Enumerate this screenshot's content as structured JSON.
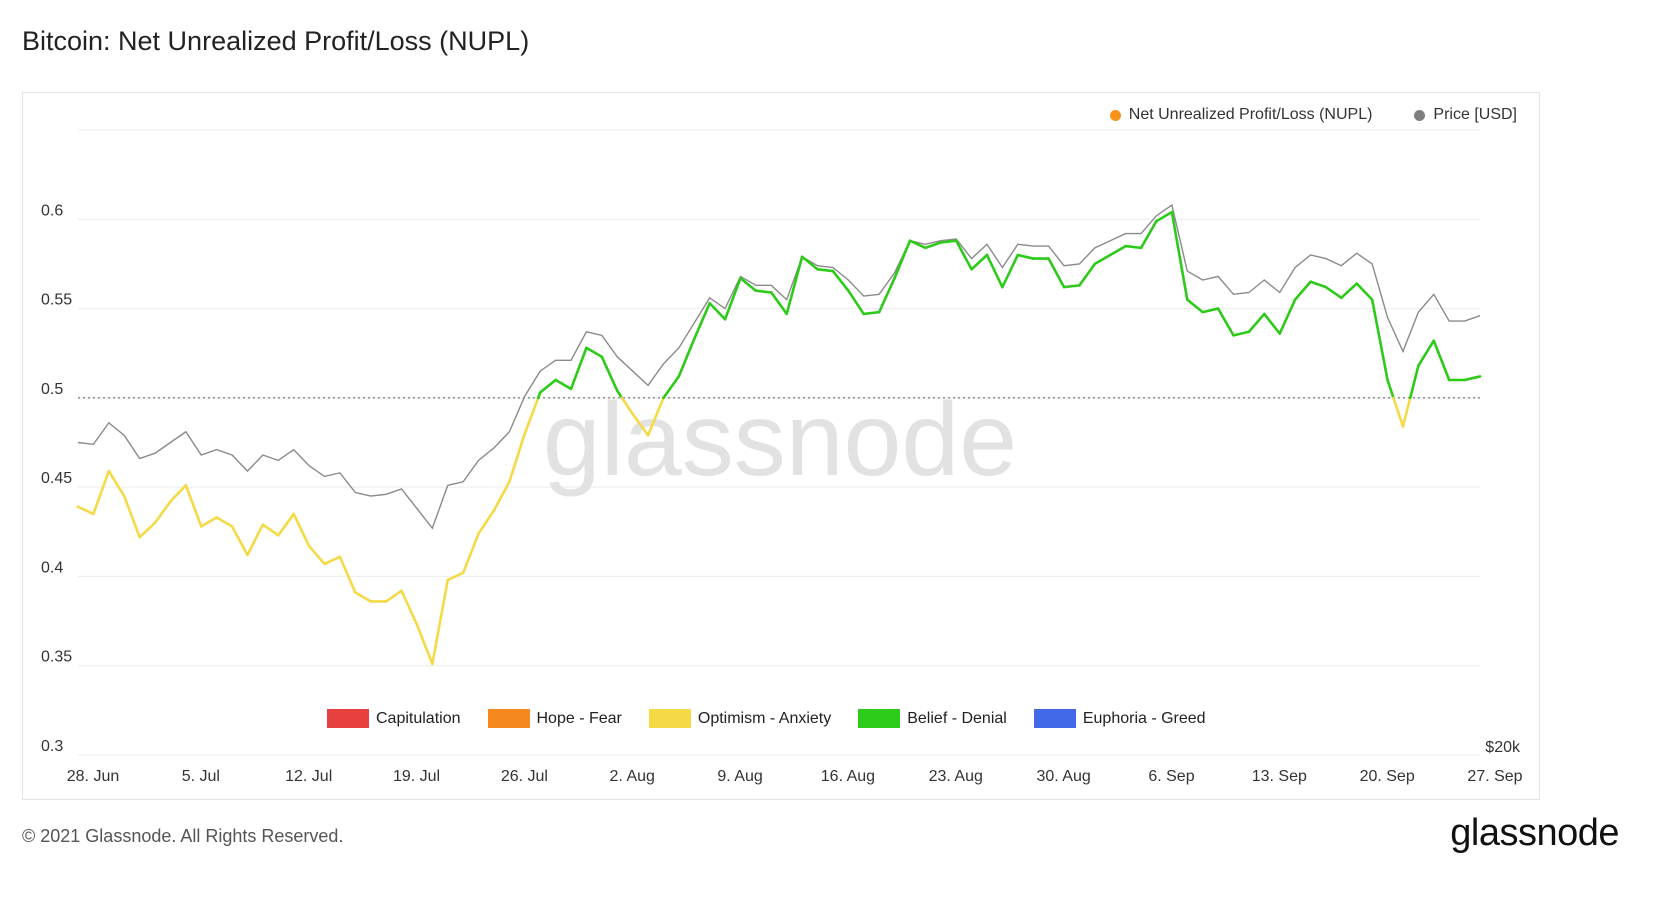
{
  "title": "Bitcoin: Net Unrealized Profit/Loss (NUPL)",
  "legend_top": [
    {
      "label": "Net Unrealized Profit/Loss (NUPL)",
      "color": "#f7931a"
    },
    {
      "label": "Price [USD]",
      "color": "#808080"
    }
  ],
  "zones": [
    {
      "label": "Capitulation",
      "color": "#e8403f"
    },
    {
      "label": "Hope - Fear",
      "color": "#f5891d"
    },
    {
      "label": "Optimism - Anxiety",
      "color": "#f5d947"
    },
    {
      "label": "Belief - Denial",
      "color": "#2dca1a"
    },
    {
      "label": "Euphoria - Greed",
      "color": "#4169e8"
    }
  ],
  "watermark": "glassnode",
  "footer": {
    "copyright": "© 2021 Glassnode. All Rights Reserved.",
    "logo": "glassnode"
  },
  "chart_data": {
    "type": "line",
    "title": "Bitcoin: Net Unrealized Profit/Loss (NUPL)",
    "ylim": [
      0.3,
      0.65
    ],
    "y_ticks": [
      "0.3",
      "0.35",
      "0.4",
      "0.45",
      "0.5",
      "0.55",
      "0.6"
    ],
    "x_ticks": [
      "28. Jun",
      "5. Jul",
      "12. Jul",
      "19. Jul",
      "26. Jul",
      "2. Aug",
      "9. Aug",
      "16. Aug",
      "23. Aug",
      "30. Aug",
      "6. Sep",
      "13. Sep",
      "20. Sep",
      "27. Sep"
    ],
    "right_axis_label": "$20k",
    "reference_line": 0.5,
    "grid": true,
    "legend_position": "top-right",
    "x": [
      "2021-06-28",
      "2021-06-29",
      "2021-06-30",
      "2021-07-01",
      "2021-07-02",
      "2021-07-03",
      "2021-07-04",
      "2021-07-05",
      "2021-07-06",
      "2021-07-07",
      "2021-07-08",
      "2021-07-09",
      "2021-07-10",
      "2021-07-11",
      "2021-07-12",
      "2021-07-13",
      "2021-07-14",
      "2021-07-15",
      "2021-07-16",
      "2021-07-17",
      "2021-07-18",
      "2021-07-19",
      "2021-07-20",
      "2021-07-21",
      "2021-07-22",
      "2021-07-23",
      "2021-07-24",
      "2021-07-25",
      "2021-07-26",
      "2021-07-27",
      "2021-07-28",
      "2021-07-29",
      "2021-07-30",
      "2021-07-31",
      "2021-08-01",
      "2021-08-02",
      "2021-08-03",
      "2021-08-04",
      "2021-08-05",
      "2021-08-06",
      "2021-08-07",
      "2021-08-08",
      "2021-08-09",
      "2021-08-10",
      "2021-08-11",
      "2021-08-12",
      "2021-08-13",
      "2021-08-14",
      "2021-08-15",
      "2021-08-16",
      "2021-08-17",
      "2021-08-18",
      "2021-08-19",
      "2021-08-20",
      "2021-08-21",
      "2021-08-22",
      "2021-08-23",
      "2021-08-24",
      "2021-08-25",
      "2021-08-26",
      "2021-08-27",
      "2021-08-28",
      "2021-08-29",
      "2021-08-30",
      "2021-08-31",
      "2021-09-01",
      "2021-09-02",
      "2021-09-03",
      "2021-09-04",
      "2021-09-05",
      "2021-09-06",
      "2021-09-07",
      "2021-09-08",
      "2021-09-09",
      "2021-09-10",
      "2021-09-11",
      "2021-09-12",
      "2021-09-13",
      "2021-09-14",
      "2021-09-15",
      "2021-09-16",
      "2021-09-17",
      "2021-09-18",
      "2021-09-19",
      "2021-09-20",
      "2021-09-21",
      "2021-09-22",
      "2021-09-23",
      "2021-09-24",
      "2021-09-25",
      "2021-09-26",
      "2021-09-27"
    ],
    "series": [
      {
        "name": "Net Unrealized Profit/Loss (NUPL)",
        "values": [
          0.439,
          0.435,
          0.459,
          0.445,
          0.422,
          0.43,
          0.442,
          0.451,
          0.428,
          0.433,
          0.428,
          0.412,
          0.429,
          0.423,
          0.435,
          0.417,
          0.407,
          0.411,
          0.391,
          0.386,
          0.386,
          0.392,
          0.373,
          0.351,
          0.398,
          0.402,
          0.424,
          0.437,
          0.453,
          0.48,
          0.503,
          0.51,
          0.505,
          0.528,
          0.523,
          0.504,
          0.491,
          0.479,
          0.5,
          0.512,
          0.533,
          0.553,
          0.544,
          0.567,
          0.56,
          0.559,
          0.547,
          0.579,
          0.572,
          0.571,
          0.56,
          0.547,
          0.548,
          0.567,
          0.588,
          0.584,
          0.587,
          0.588,
          0.572,
          0.58,
          0.562,
          0.58,
          0.578,
          0.578,
          0.562,
          0.563,
          0.575,
          0.58,
          0.585,
          0.584,
          0.599,
          0.604,
          0.555,
          0.548,
          0.55,
          0.535,
          0.537,
          0.547,
          0.536,
          0.555,
          0.565,
          0.562,
          0.556,
          0.564,
          0.555,
          0.51,
          0.484,
          0.518,
          0.532,
          0.51,
          0.51,
          0.512
        ]
      },
      {
        "name": "Price [USD]",
        "values": [
          0.475,
          0.474,
          0.486,
          0.479,
          0.466,
          0.469,
          0.475,
          0.481,
          0.468,
          0.471,
          0.468,
          0.459,
          0.468,
          0.465,
          0.471,
          0.462,
          0.456,
          0.458,
          0.447,
          0.445,
          0.446,
          0.449,
          0.438,
          0.427,
          0.451,
          0.453,
          0.465,
          0.472,
          0.481,
          0.501,
          0.515,
          0.521,
          0.521,
          0.537,
          0.535,
          0.523,
          0.515,
          0.507,
          0.519,
          0.528,
          0.542,
          0.556,
          0.55,
          0.568,
          0.563,
          0.563,
          0.555,
          0.579,
          0.574,
          0.573,
          0.566,
          0.557,
          0.558,
          0.57,
          0.588,
          0.586,
          0.588,
          0.589,
          0.578,
          0.586,
          0.573,
          0.586,
          0.585,
          0.585,
          0.574,
          0.575,
          0.584,
          0.588,
          0.592,
          0.592,
          0.602,
          0.608,
          0.571,
          0.566,
          0.568,
          0.558,
          0.559,
          0.566,
          0.559,
          0.573,
          0.58,
          0.578,
          0.574,
          0.581,
          0.575,
          0.545,
          0.526,
          0.548,
          0.558,
          0.543,
          0.543,
          0.546
        ]
      }
    ]
  }
}
